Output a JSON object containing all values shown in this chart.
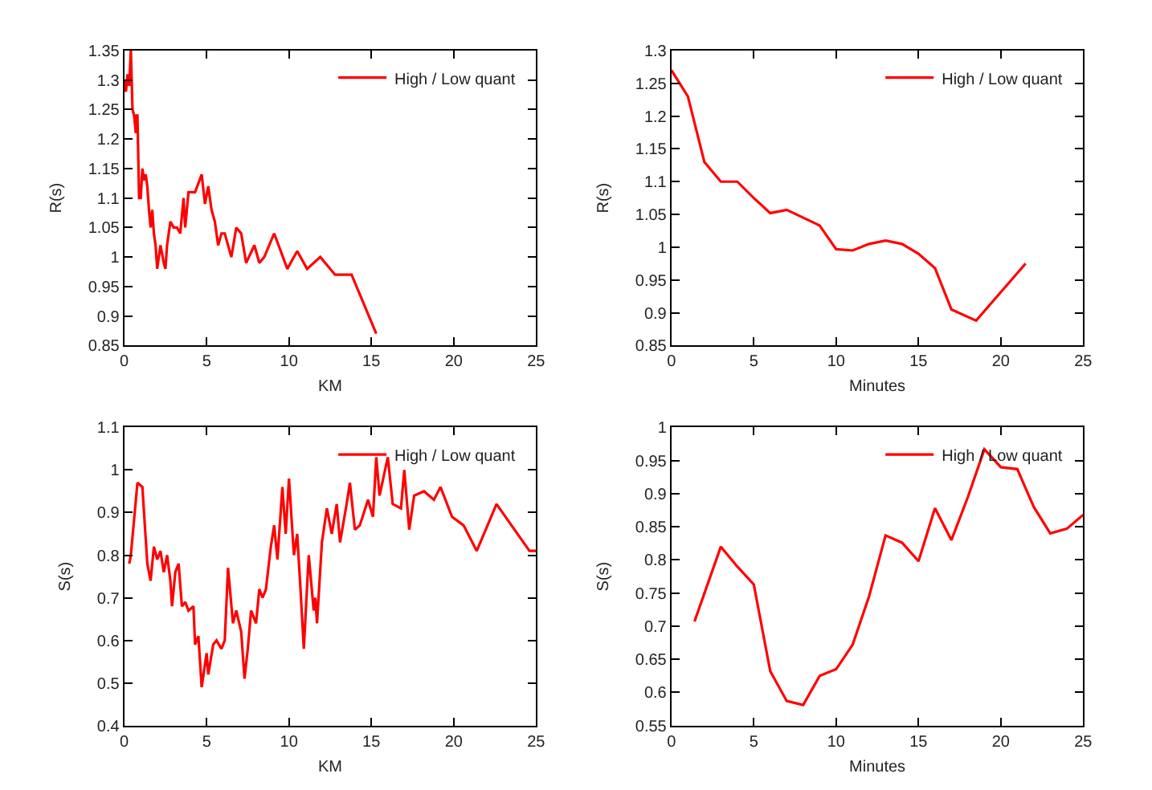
{
  "chart_data": [
    {
      "type": "line",
      "xlabel": "KM",
      "ylabel": "R(s)",
      "xlim": [
        0,
        25
      ],
      "xticks": [
        0,
        5,
        10,
        15,
        20,
        25
      ],
      "ylim": [
        0.85,
        1.35
      ],
      "yticks": [
        0.85,
        0.9,
        0.95,
        1,
        1.05,
        1.1,
        1.15,
        1.2,
        1.25,
        1.3,
        1.35
      ],
      "legend": "top right",
      "series": [
        {
          "name": "High / Low quant",
          "color": "#ff0000",
          "x": [
            0,
            0.1,
            0.2,
            0.3,
            0.4,
            0.5,
            0.6,
            0.7,
            0.75,
            0.8,
            0.9,
            1.0,
            1.1,
            1.2,
            1.3,
            1.4,
            1.5,
            1.6,
            1.7,
            1.8,
            1.9,
            2.0,
            2.2,
            2.4,
            2.5,
            2.6,
            2.8,
            3.0,
            3.2,
            3.4,
            3.6,
            3.7,
            3.9,
            4.3,
            4.7,
            4.9,
            5.1,
            5.3,
            5.5,
            5.7,
            5.9,
            6.1,
            6.5,
            6.8,
            7.1,
            7.4,
            7.9,
            8.2,
            8.5,
            9.1,
            9.9,
            10.5,
            11.1,
            11.9,
            12.8,
            13.8,
            15.3
          ],
          "values": [
            1.3,
            1.28,
            1.31,
            1.29,
            1.35,
            1.25,
            1.24,
            1.21,
            1.24,
            1.24,
            1.1,
            1.1,
            1.15,
            1.13,
            1.14,
            1.12,
            1.08,
            1.05,
            1.08,
            1.04,
            1.02,
            0.98,
            1.02,
            0.99,
            0.98,
            1.02,
            1.06,
            1.05,
            1.05,
            1.04,
            1.1,
            1.05,
            1.11,
            1.11,
            1.14,
            1.09,
            1.12,
            1.08,
            1.06,
            1.02,
            1.04,
            1.04,
            1.0,
            1.05,
            1.04,
            0.99,
            1.02,
            0.99,
            1.0,
            1.04,
            0.98,
            1.01,
            0.98,
            1.0,
            0.97,
            0.97,
            0.87
          ]
        }
      ]
    },
    {
      "type": "line",
      "xlabel": "Minutes",
      "ylabel": "R(s)",
      "xlim": [
        0,
        25
      ],
      "xticks": [
        0,
        5,
        10,
        15,
        20,
        25
      ],
      "ylim": [
        0.85,
        1.3
      ],
      "yticks": [
        0.85,
        0.9,
        0.95,
        1,
        1.05,
        1.1,
        1.15,
        1.2,
        1.25,
        1.3
      ],
      "legend": "top right",
      "series": [
        {
          "name": "High / Low quant",
          "color": "#ff0000",
          "x": [
            0,
            1,
            2,
            3,
            4,
            5,
            6,
            7,
            8,
            9,
            10,
            11,
            12,
            13,
            14,
            15,
            16,
            17,
            18.5,
            21.5
          ],
          "values": [
            1.27,
            1.23,
            1.13,
            1.1,
            1.1,
            1.075,
            1.052,
            1.057,
            1.045,
            1.033,
            0.997,
            0.995,
            1.005,
            1.01,
            1.005,
            0.99,
            0.968,
            0.905,
            0.888,
            0.975
          ]
        }
      ]
    },
    {
      "type": "line",
      "xlabel": "KM",
      "ylabel": "S(s)",
      "xlim": [
        0,
        25
      ],
      "xticks": [
        0,
        5,
        10,
        15,
        20,
        25
      ],
      "ylim": [
        0.4,
        1.1
      ],
      "yticks": [
        0.4,
        0.5,
        0.6,
        0.7,
        0.8,
        0.9,
        1,
        1.1
      ],
      "legend": "top right",
      "series": [
        {
          "name": "High / Low quant",
          "color": "#ff0000",
          "x": [
            0.3,
            0.4,
            0.8,
            1.1,
            1.4,
            1.6,
            1.8,
            2.0,
            2.2,
            2.4,
            2.6,
            2.8,
            2.9,
            3.1,
            3.3,
            3.5,
            3.7,
            3.9,
            4.2,
            4.3,
            4.5,
            4.7,
            5.0,
            5.1,
            5.4,
            5.6,
            5.9,
            6.1,
            6.3,
            6.6,
            6.8,
            7.1,
            7.3,
            7.5,
            7.7,
            8.0,
            8.2,
            8.4,
            8.6,
            8.9,
            9.1,
            9.3,
            9.6,
            9.8,
            10.0,
            10.3,
            10.5,
            10.7,
            10.9,
            11.2,
            11.5,
            11.6,
            11.7,
            12.0,
            12.3,
            12.6,
            12.9,
            13.1,
            13.5,
            13.7,
            14.0,
            14.3,
            14.8,
            15.1,
            15.3,
            15.5,
            16.0,
            16.3,
            16.8,
            17.0,
            17.3,
            17.6,
            18.2,
            18.8,
            19.2,
            19.9,
            20.6,
            21.4,
            22.6,
            24.6,
            25
          ],
          "values": [
            0.78,
            0.8,
            0.97,
            0.96,
            0.78,
            0.74,
            0.82,
            0.79,
            0.81,
            0.76,
            0.8,
            0.74,
            0.68,
            0.76,
            0.78,
            0.68,
            0.69,
            0.67,
            0.68,
            0.59,
            0.61,
            0.49,
            0.57,
            0.52,
            0.59,
            0.6,
            0.58,
            0.6,
            0.77,
            0.64,
            0.67,
            0.62,
            0.51,
            0.58,
            0.67,
            0.64,
            0.72,
            0.7,
            0.72,
            0.82,
            0.87,
            0.79,
            0.96,
            0.85,
            0.98,
            0.8,
            0.85,
            0.72,
            0.58,
            0.8,
            0.67,
            0.7,
            0.64,
            0.83,
            0.91,
            0.85,
            0.92,
            0.83,
            0.92,
            0.97,
            0.86,
            0.87,
            0.93,
            0.89,
            1.03,
            0.94,
            1.03,
            0.92,
            0.91,
            1.0,
            0.86,
            0.94,
            0.95,
            0.93,
            0.96,
            0.89,
            0.87,
            0.81,
            0.92,
            0.81,
            0.81
          ]
        }
      ]
    },
    {
      "type": "line",
      "xlabel": "Minutes",
      "ylabel": "S(s)",
      "xlim": [
        0,
        25
      ],
      "xticks": [
        0,
        5,
        10,
        15,
        20,
        25
      ],
      "ylim": [
        0.55,
        1
      ],
      "yticks": [
        0.55,
        0.6,
        0.65,
        0.7,
        0.75,
        0.8,
        0.85,
        0.9,
        0.95,
        1
      ],
      "legend": "top right",
      "series": [
        {
          "name": "High / Low quant",
          "color": "#ff0000",
          "x": [
            1.4,
            3,
            4,
            5,
            6,
            7,
            8,
            9,
            10,
            11,
            12,
            13,
            14,
            15,
            16,
            17,
            18,
            19,
            20,
            21,
            22,
            23,
            24,
            25
          ],
          "values": [
            0.707,
            0.82,
            0.79,
            0.763,
            0.632,
            0.587,
            0.581,
            0.625,
            0.635,
            0.672,
            0.745,
            0.837,
            0.826,
            0.798,
            0.878,
            0.83,
            0.895,
            0.967,
            0.94,
            0.937,
            0.88,
            0.84,
            0.847,
            0.868
          ]
        }
      ]
    }
  ]
}
